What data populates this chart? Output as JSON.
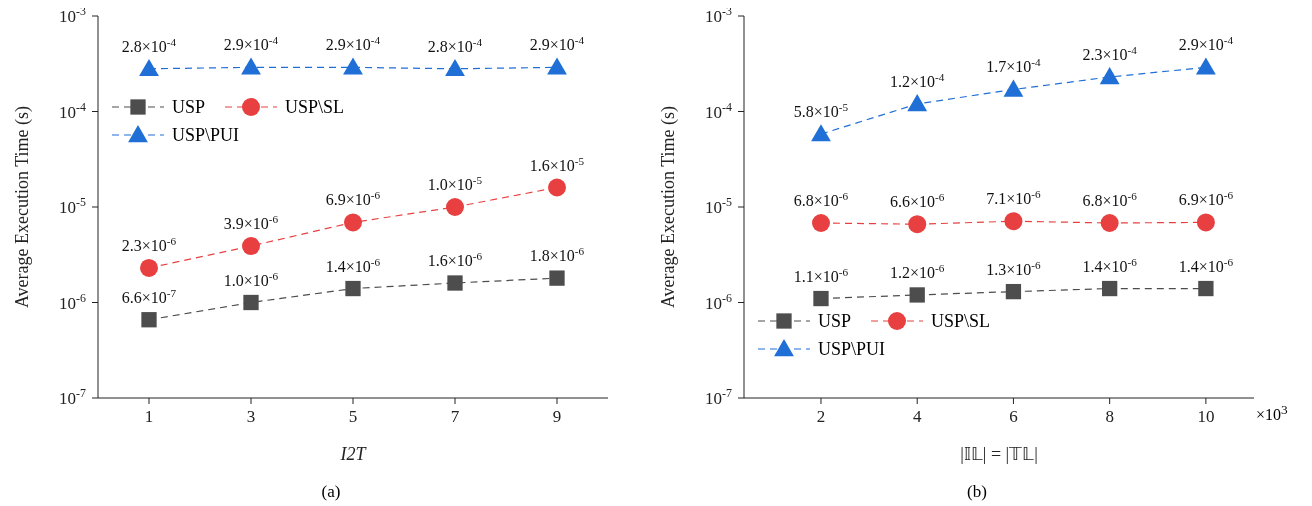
{
  "chart_data": [
    {
      "type": "line",
      "ylabel": "Average Execution Time (s)",
      "xlabel": "I2T",
      "x": [
        1,
        3,
        5,
        7,
        9
      ],
      "xlim": [
        0,
        10
      ],
      "xticks": [
        1,
        3,
        5,
        7,
        9
      ],
      "log": true,
      "ylim": [
        1e-07,
        0.001
      ],
      "yticks": [
        {
          "value": 1e-07,
          "label": "10$^{-7}$"
        },
        {
          "value": 1e-06,
          "label": "10$^{-6}$"
        },
        {
          "value": 1e-05,
          "label": "10$^{-5}$"
        },
        {
          "value": 0.0001,
          "label": "10$^{-4}$"
        },
        {
          "value": 0.001,
          "label": "10$^{-3}$"
        }
      ],
      "legend": "top left",
      "line_style": "dashed",
      "annotations": [
        "(a)"
      ],
      "series": [
        {
          "name": "USP",
          "color": "#4d4d4d",
          "marker": "square",
          "values": [
            6.6e-07,
            1e-06,
            1.4e-06,
            1.6e-06,
            1.8e-06
          ],
          "value_labels": [
            "6.6×10$^{-7}$",
            "1.0×10$^{-6}$",
            "1.4×10$^{-6}$",
            "1.6×10$^{-6}$",
            "1.8×10$^{-6}$"
          ]
        },
        {
          "name": "USP\\SL",
          "color": "#e84040",
          "marker": "circle",
          "values": [
            2.3e-06,
            3.9e-06,
            6.9e-06,
            1e-05,
            1.6e-05
          ],
          "value_labels": [
            "2.3×10$^{-6}$",
            "3.9×10$^{-6}$",
            "6.9×10$^{-6}$",
            "1.0×10$^{-5}$",
            "1.6×10$^{-5}$"
          ]
        },
        {
          "name": "USP\\PUI",
          "color": "#1f6fd6",
          "marker": "triangle",
          "values": [
            0.00028,
            0.00029,
            0.00029,
            0.00028,
            0.00029
          ],
          "value_labels": [
            "2.8×10$^{-4}$",
            "2.9×10$^{-4}$",
            "2.9×10$^{-4}$",
            "2.8×10$^{-4}$",
            "2.9×10$^{-4}$"
          ]
        }
      ]
    },
    {
      "type": "line",
      "ylabel": "Average Execution Time (s)",
      "xlabel": "|𝕀𝕃| = |𝕋𝕃|",
      "x": [
        2,
        4,
        6,
        8,
        10
      ],
      "xlim": [
        0.4,
        11
      ],
      "xticks": [
        2,
        4,
        6,
        8,
        10
      ],
      "log": true,
      "ylim": [
        1e-07,
        0.001
      ],
      "yticks": [
        {
          "value": 1e-07,
          "label": "10$^{-7}$"
        },
        {
          "value": 1e-06,
          "label": "10$^{-6}$"
        },
        {
          "value": 1e-05,
          "label": "10$^{-5}$"
        },
        {
          "value": 0.0001,
          "label": "10$^{-4}$"
        },
        {
          "value": 0.001,
          "label": "10$^{-3}$"
        }
      ],
      "legend": "bottom left",
      "line_style": "dashed",
      "annotations": [
        "×10$^{3}$",
        "(b)"
      ],
      "series": [
        {
          "name": "USP",
          "color": "#4d4d4d",
          "marker": "square",
          "values": [
            1.1e-06,
            1.2e-06,
            1.3e-06,
            1.4e-06,
            1.4e-06
          ],
          "value_labels": [
            "1.1×10$^{-6}$",
            "1.2×10$^{-6}$",
            "1.3×10$^{-6}$",
            "1.4×10$^{-6}$",
            "1.4×10$^{-6}$"
          ]
        },
        {
          "name": "USP\\SL",
          "color": "#e84040",
          "marker": "circle",
          "values": [
            6.8e-06,
            6.6e-06,
            7.1e-06,
            6.8e-06,
            6.9e-06
          ],
          "value_labels": [
            "6.8×10$^{-6}$",
            "6.6×10$^{-6}$",
            "7.1×10$^{-6}$",
            "6.8×10$^{-6}$",
            "6.9×10$^{-6}$"
          ]
        },
        {
          "name": "USP\\PUI",
          "color": "#1f6fd6",
          "marker": "triangle",
          "values": [
            5.8e-05,
            0.00012,
            0.00017,
            0.00023,
            0.00029
          ],
          "value_labels": [
            "5.8×10$^{-5}$",
            "1.2×10$^{-4}$",
            "1.7×10$^{-4}$",
            "2.3×10$^{-4}$",
            "2.9×10$^{-4}$"
          ]
        }
      ]
    }
  ]
}
